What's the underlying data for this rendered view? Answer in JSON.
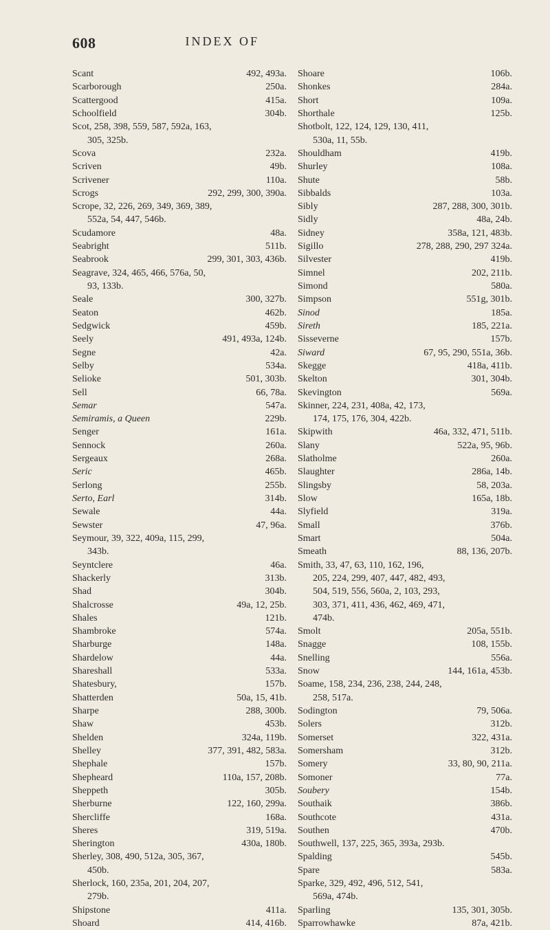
{
  "pageNumber": "608",
  "pageTitle": "INDEX OF",
  "left": [
    {
      "t": "Scant",
      "r": "492, 493a."
    },
    {
      "t": "Scarborough",
      "r": "250a."
    },
    {
      "t": "Scattergood",
      "r": "415a."
    },
    {
      "t": "Schoolfield",
      "r": "304b."
    },
    {
      "t": "Scot, 258, 398, 559, 587, 592a, 163,",
      "r": ""
    },
    {
      "cont": "305, 325b."
    },
    {
      "t": "Scova",
      "r": "232a."
    },
    {
      "t": "Scriven",
      "r": "49b."
    },
    {
      "t": "Scrivener",
      "r": "110a."
    },
    {
      "t": "Scrogs",
      "r": "292, 299, 300, 390a."
    },
    {
      "t": "Scrope, 32, 226, 269, 349, 369, 389,",
      "r": ""
    },
    {
      "cont": "552a, 54, 447, 546b."
    },
    {
      "t": "Scudamore",
      "r": "48a."
    },
    {
      "t": "Seabright",
      "r": "511b."
    },
    {
      "t": "Seabrook",
      "r": "299, 301, 303, 436b."
    },
    {
      "t": "Seagrave, 324, 465, 466, 576a, 50,",
      "r": ""
    },
    {
      "cont": "93, 133b."
    },
    {
      "t": "Seale",
      "r": "300, 327b."
    },
    {
      "t": "Seaton",
      "r": "462b."
    },
    {
      "t": "Sedgwick",
      "r": "459b."
    },
    {
      "t": "Seely",
      "r": "491, 493a, 124b."
    },
    {
      "t": "Segne",
      "r": "42a."
    },
    {
      "t": "Selby",
      "r": "534a."
    },
    {
      "t": "Selioke",
      "r": "501, 303b."
    },
    {
      "t": "Sell",
      "r": "66, 78a."
    },
    {
      "t": "Semar",
      "it": true,
      "r": "547a."
    },
    {
      "t": "Semiramis, a Queen",
      "it": true,
      "r": "229b."
    },
    {
      "t": "Senger",
      "r": "161a."
    },
    {
      "t": "Sennock",
      "r": "260a."
    },
    {
      "t": "Sergeaux",
      "r": "268a."
    },
    {
      "t": "Seric",
      "it": true,
      "r": "465b."
    },
    {
      "t": "Serlong",
      "r": "255b."
    },
    {
      "t": "Serto, Earl",
      "it": true,
      "r": "314b."
    },
    {
      "t": "Sewale",
      "r": "44a."
    },
    {
      "t": "Sewster",
      "r": "47, 96a."
    },
    {
      "t": "Seymour, 39, 322, 409a, 115, 299,",
      "r": ""
    },
    {
      "cont": "343b."
    },
    {
      "t": "Seyntclere",
      "r": "46a."
    },
    {
      "t": "Shackerly",
      "r": "313b."
    },
    {
      "t": "Shad",
      "r": "304b."
    },
    {
      "t": "Shalcrosse",
      "r": "49a, 12, 25b."
    },
    {
      "t": "Shales",
      "r": "121b."
    },
    {
      "t": "Shambroke",
      "r": "574a."
    },
    {
      "t": "Sharburge",
      "r": "148a."
    },
    {
      "t": "Shardelow",
      "r": "44a."
    },
    {
      "t": "Shareshall",
      "r": "533a."
    },
    {
      "t": "Shatesbury,",
      "r": "157b."
    },
    {
      "t": "Shatterden",
      "r": "50a, 15, 41b."
    },
    {
      "t": "Sharpe",
      "r": "288, 300b."
    },
    {
      "t": "Shaw",
      "r": "453b."
    },
    {
      "t": "Shelden",
      "r": "324a, 119b."
    },
    {
      "t": "Shelley",
      "r": "377, 391, 482, 583a."
    },
    {
      "t": "Shephale",
      "r": "157b."
    },
    {
      "t": "Shepheard",
      "r": "110a, 157, 208b."
    },
    {
      "t": "Sheppeth",
      "r": "305b."
    },
    {
      "t": "Sherburne",
      "r": "122, 160, 299a."
    },
    {
      "t": "Shercliffe",
      "r": "168a."
    },
    {
      "t": "Sheres",
      "r": "319, 519a."
    },
    {
      "t": "Sherington",
      "r": "430a, 180b."
    },
    {
      "t": "Sherley, 308, 490, 512a, 305, 367,",
      "r": ""
    },
    {
      "cont": "450b."
    },
    {
      "t": "Sherlock, 160, 235a, 201, 204, 207,",
      "r": ""
    },
    {
      "cont": "279b."
    },
    {
      "t": "Shipstone",
      "r": "411a."
    },
    {
      "t": "Shoard",
      "r": "414, 416b."
    }
  ],
  "right": [
    {
      "t": "Shoare",
      "r": "106b."
    },
    {
      "t": "Shonkes",
      "r": "284a."
    },
    {
      "t": "Short",
      "r": "109a."
    },
    {
      "t": "Shorthale",
      "r": "125b."
    },
    {
      "t": "Shotbolt, 122, 124, 129, 130, 411,",
      "r": ""
    },
    {
      "cont": "530a, 11, 55b."
    },
    {
      "t": "Shouldham",
      "r": "419b."
    },
    {
      "t": "Shurley",
      "r": "108a."
    },
    {
      "t": "Shute",
      "r": "58b."
    },
    {
      "t": "Sibbalds",
      "r": "103a."
    },
    {
      "t": "Sibly",
      "r": "287, 288, 300, 301b."
    },
    {
      "t": "Sidly",
      "r": "48a, 24b."
    },
    {
      "t": "Sidney",
      "r": "358a, 121, 483b."
    },
    {
      "t": "Sigillo",
      "r": "278, 288, 290, 297 324a."
    },
    {
      "t": "Silvester",
      "r": "419b."
    },
    {
      "t": "Simnel",
      "r": "202, 211b."
    },
    {
      "t": "Simond",
      "r": "580a."
    },
    {
      "t": "Simpson",
      "r": "551g, 301b."
    },
    {
      "t": "Sinod",
      "it": true,
      "r": "185a."
    },
    {
      "t": "Sireth",
      "it": true,
      "r": "185, 221a."
    },
    {
      "t": "Sisseverne",
      "r": "157b."
    },
    {
      "t": "Siward",
      "it": true,
      "r": "67, 95, 290, 551a, 36b."
    },
    {
      "t": "Skegge",
      "r": "418a, 411b."
    },
    {
      "t": "Skelton",
      "r": "301, 304b."
    },
    {
      "t": "Skevington",
      "r": "569a."
    },
    {
      "t": "Skinner, 224, 231, 408a, 42, 173,",
      "r": ""
    },
    {
      "cont": "174, 175, 176, 304, 422b."
    },
    {
      "t": "Skipwith",
      "r": "46a, 332, 471, 511b."
    },
    {
      "t": "Slany",
      "r": "522a, 95, 96b."
    },
    {
      "t": "Slatholme",
      "r": "260a."
    },
    {
      "t": "Slaughter",
      "r": "286a, 14b."
    },
    {
      "t": "Slingsby",
      "r": "58, 203a."
    },
    {
      "t": "Slow",
      "r": "165a, 18b."
    },
    {
      "t": "Slyfield",
      "r": "319a."
    },
    {
      "t": "Small",
      "r": "376b."
    },
    {
      "t": "Smart",
      "r": "504a."
    },
    {
      "t": "Smeath",
      "r": "88, 136, 207b."
    },
    {
      "t": "Smith, 33, 47, 63, 110, 162, 196,",
      "r": ""
    },
    {
      "cont": "205, 224, 299, 407, 447, 482, 493,"
    },
    {
      "cont": "504, 519, 556, 560a, 2, 103, 293,"
    },
    {
      "cont": "303, 371, 411, 436, 462, 469, 471,"
    },
    {
      "cont": "474b."
    },
    {
      "t": "Smolt",
      "r": "205a, 551b."
    },
    {
      "t": "Snagge",
      "r": "108, 155b."
    },
    {
      "t": "Snelling",
      "r": "556a."
    },
    {
      "t": "Snow",
      "r": "144, 161a, 453b."
    },
    {
      "t": "Soame, 158, 234, 236, 238, 244, 248,",
      "r": ""
    },
    {
      "cont": "258, 517a."
    },
    {
      "t": "Sodington",
      "r": "79, 506a."
    },
    {
      "t": "Solers",
      "r": "312b."
    },
    {
      "t": "Somerset",
      "r": "322, 431a."
    },
    {
      "t": "Somersham",
      "r": "312b."
    },
    {
      "t": "Somery",
      "r": "33, 80, 90, 211a."
    },
    {
      "t": "Somoner",
      "r": "77a."
    },
    {
      "t": "Soubery",
      "it": true,
      "r": "154b."
    },
    {
      "t": "Southaik",
      "r": "386b."
    },
    {
      "t": "Southcote",
      "r": "431a."
    },
    {
      "t": "Southen",
      "r": "470b."
    },
    {
      "t": "Southwell, 137, 225, 365, 393a, 293b.",
      "r": ""
    },
    {
      "t": "Spalding",
      "r": "545b."
    },
    {
      "t": "Spare",
      "r": "583a."
    },
    {
      "t": "Sparke, 329, 492, 496, 512, 541,",
      "r": ""
    },
    {
      "cont": "569a, 474b."
    },
    {
      "t": "Sparling",
      "r": "135, 301, 305b."
    },
    {
      "t": "Sparrowhawke",
      "r": "87a, 421b."
    }
  ]
}
